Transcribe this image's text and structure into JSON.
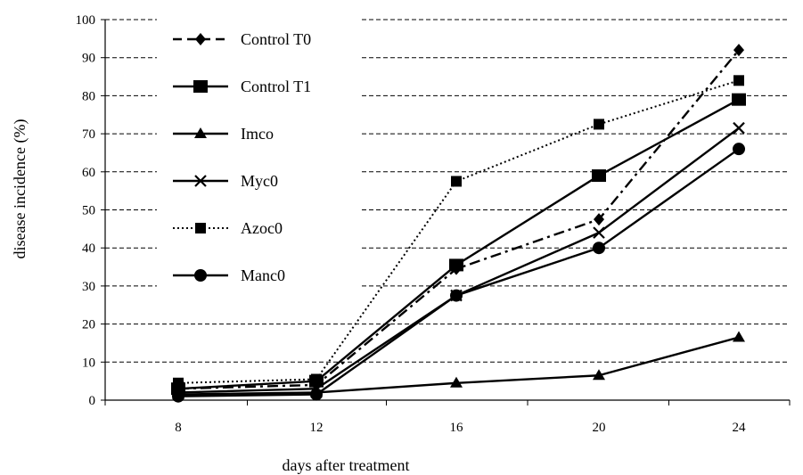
{
  "chart_data": {
    "type": "line",
    "title": "",
    "xlabel": "days after treatment",
    "ylabel": "disease incidence (%)",
    "ylim": [
      0,
      100
    ],
    "yticks": [
      0,
      10,
      20,
      30,
      40,
      50,
      60,
      70,
      80,
      90,
      100
    ],
    "categories": [
      "8",
      "12",
      "16",
      "20",
      "24"
    ],
    "grid": "horizontal dashed",
    "legend_position": "top-left",
    "series": [
      {
        "name": "Control T0",
        "marker": "diamond",
        "line": "dashdot",
        "values": [
          3,
          4,
          34.5,
          47.5,
          92
        ]
      },
      {
        "name": "Control T1",
        "marker": "square",
        "line": "solid",
        "values": [
          3,
          5,
          35.5,
          59,
          79
        ]
      },
      {
        "name": "Imco",
        "marker": "triangle",
        "line": "solid",
        "values": [
          1.5,
          2,
          4.5,
          6.5,
          16.5
        ]
      },
      {
        "name": "Myc0",
        "marker": "x",
        "line": "solid",
        "values": [
          2,
          3,
          27.5,
          44,
          71.5
        ]
      },
      {
        "name": "Azoc0",
        "marker": "small-square",
        "line": "dotted",
        "values": [
          4.5,
          5.5,
          57.5,
          72.5,
          84
        ]
      },
      {
        "name": "Manc0",
        "marker": "circle",
        "line": "solid",
        "values": [
          1,
          1.5,
          27.5,
          40,
          66
        ]
      }
    ]
  }
}
